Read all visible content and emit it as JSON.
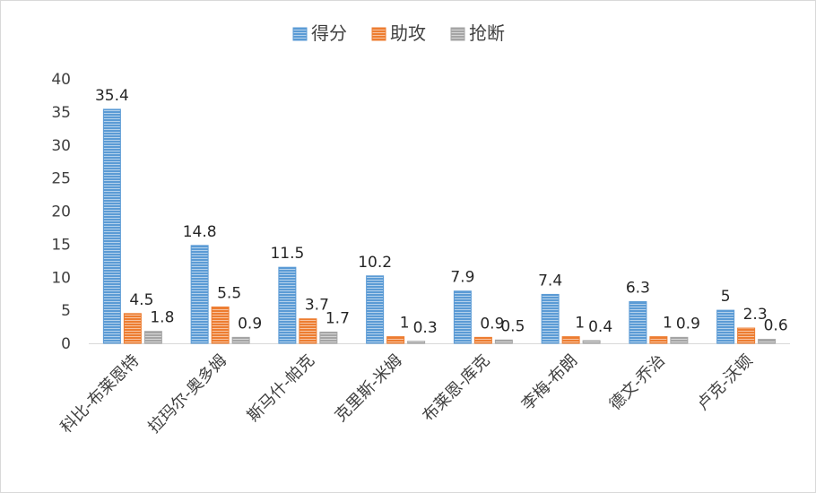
{
  "chart_data": {
    "type": "bar",
    "title": "",
    "xlabel": "",
    "ylabel": "",
    "ylim": [
      0,
      40
    ],
    "yticks": [
      0,
      5,
      10,
      15,
      20,
      25,
      30,
      35,
      40
    ],
    "grid": false,
    "legend_position": "top",
    "categories": [
      "科比-布莱恩特",
      "拉玛尔-奥多姆",
      "斯马什-帕克",
      "克里斯-米姆",
      "布莱恩-库克",
      "李梅-布朗",
      "德文-乔治",
      "卢克-沃顿"
    ],
    "series": [
      {
        "name": "得分",
        "color": "#5b9bd5",
        "values": [
          35.4,
          14.8,
          11.5,
          10.2,
          7.9,
          7.4,
          6.3,
          5
        ]
      },
      {
        "name": "助攻",
        "color": "#ed7d31",
        "values": [
          4.5,
          5.5,
          3.7,
          1,
          0.9,
          1,
          1,
          2.3
        ]
      },
      {
        "name": "抢断",
        "color": "#a5a5a5",
        "values": [
          1.8,
          0.9,
          1.7,
          0.3,
          0.5,
          0.4,
          0.9,
          0.6
        ]
      }
    ]
  }
}
